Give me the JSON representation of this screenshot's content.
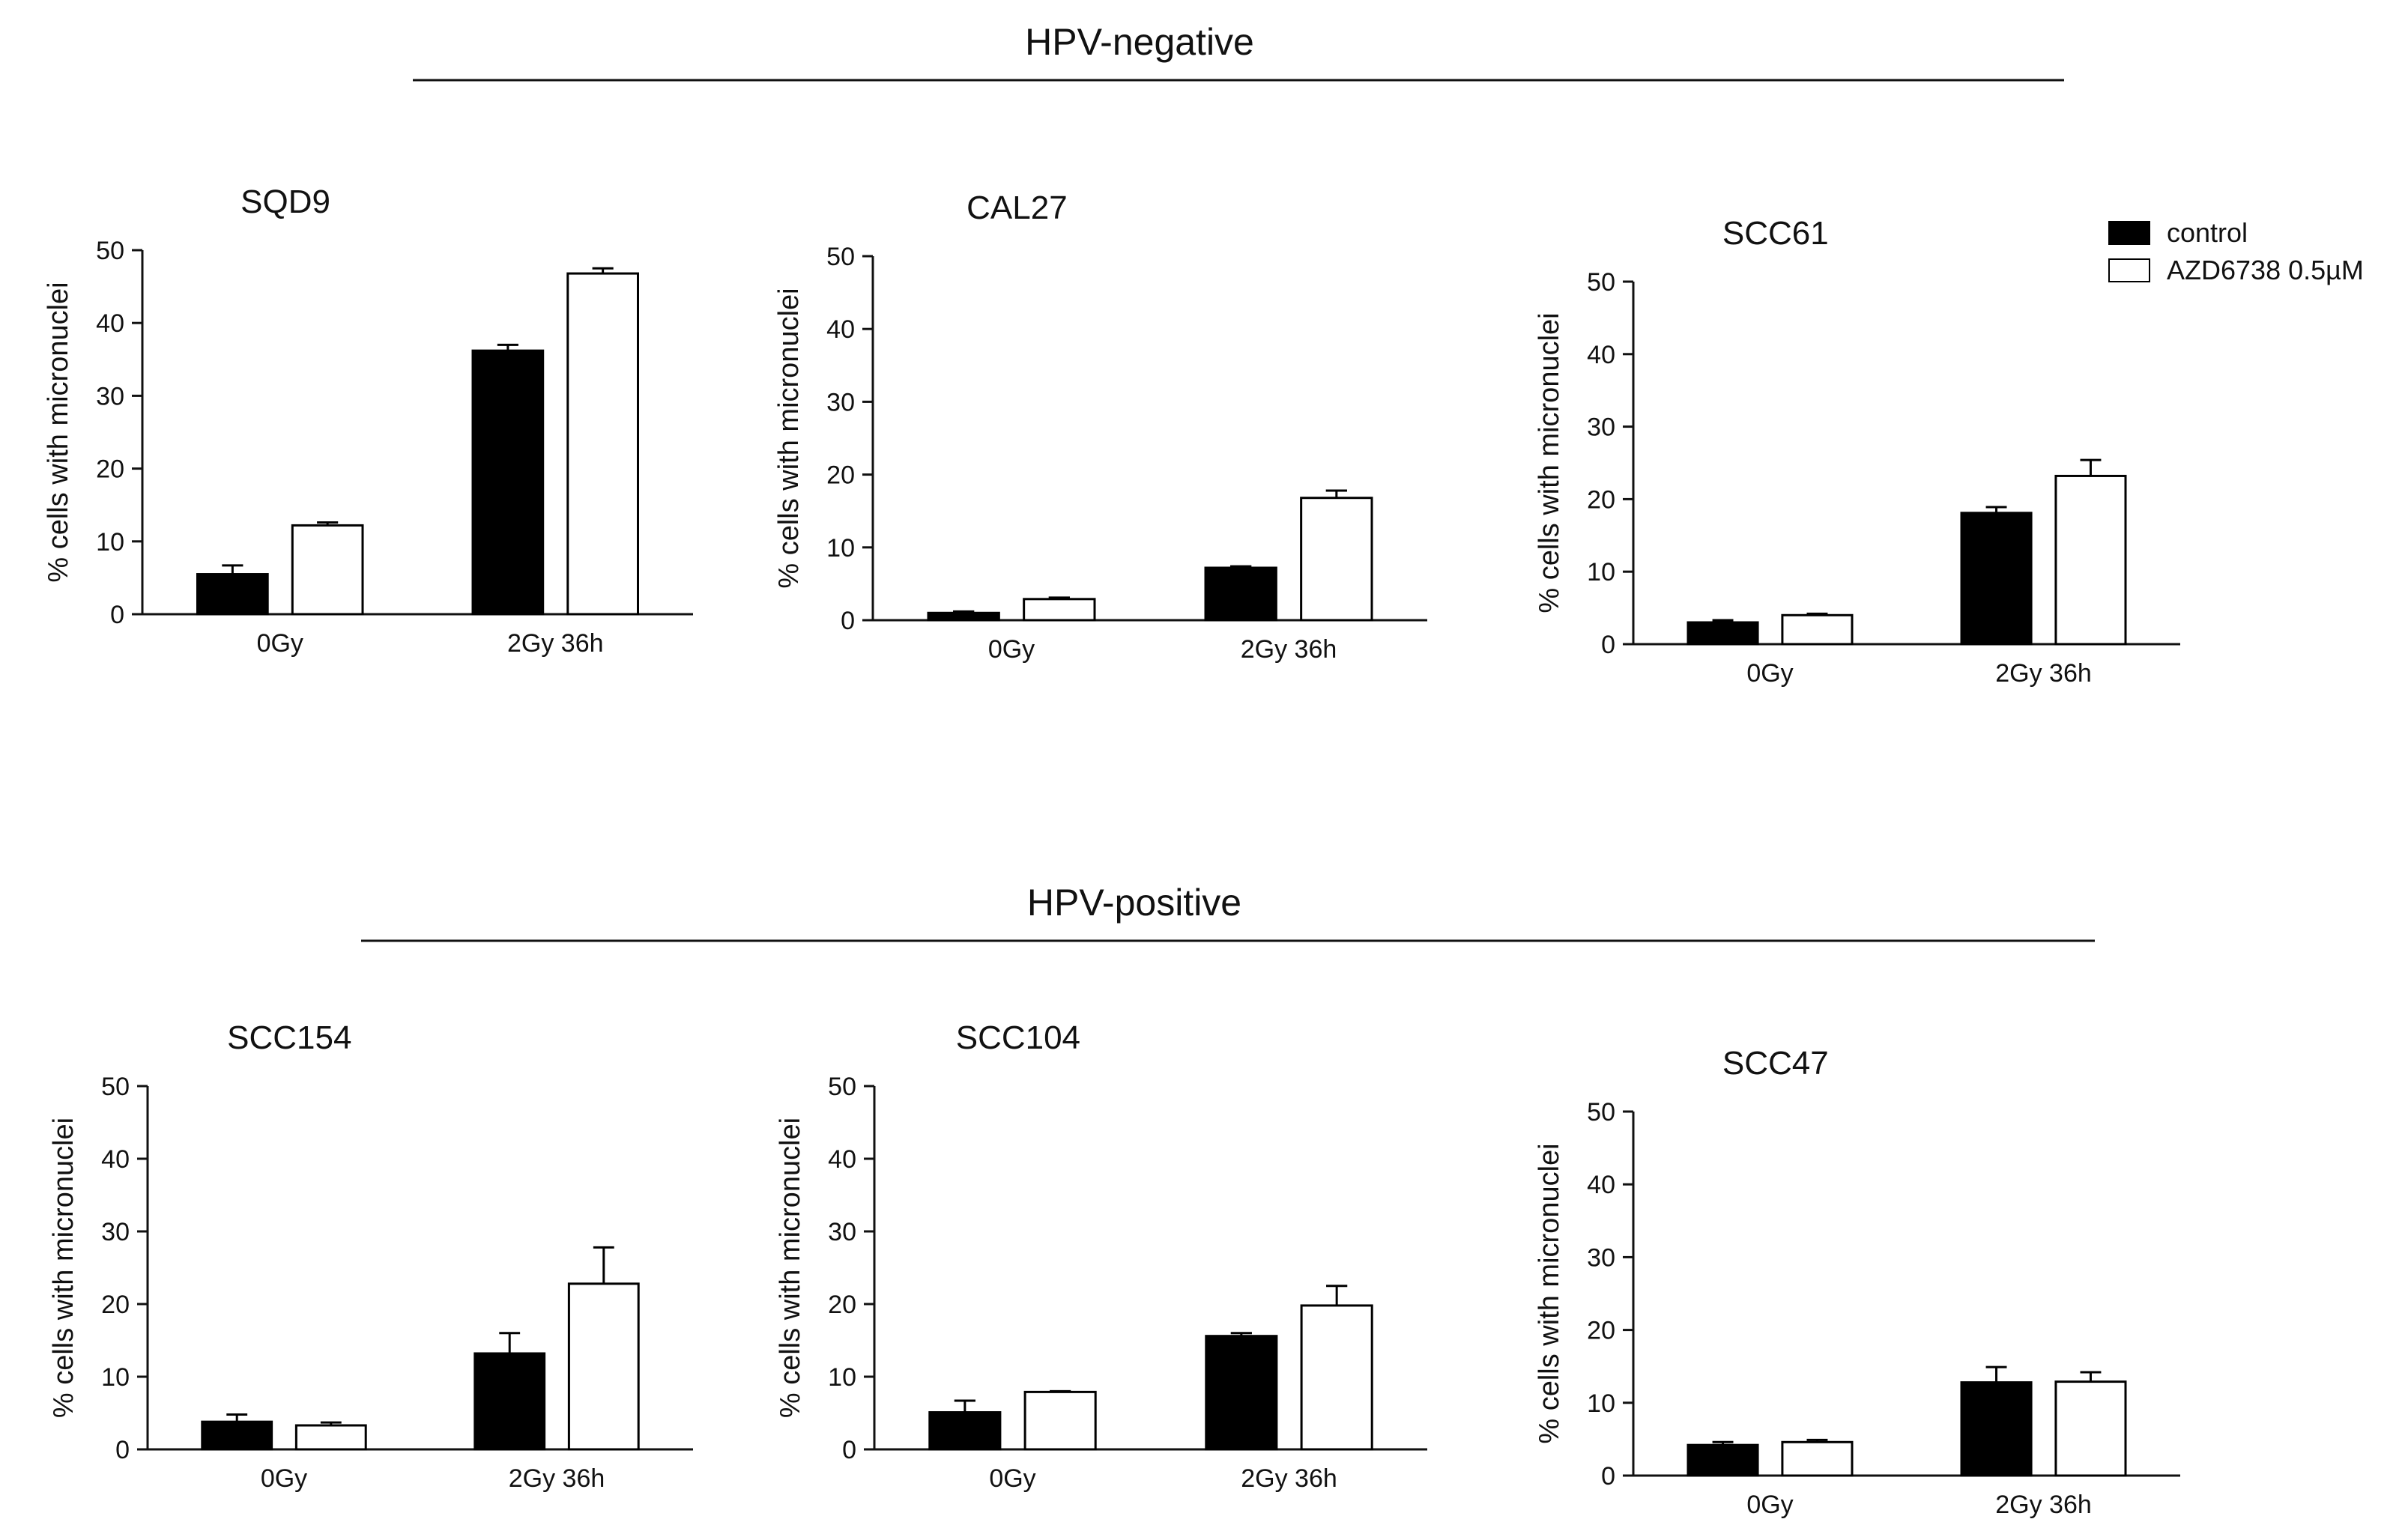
{
  "sections": [
    {
      "title": "HPV-negative"
    },
    {
      "title": "HPV-positive"
    }
  ],
  "legend": {
    "entries": [
      {
        "label": "control",
        "fill": "#000000"
      },
      {
        "label": "AZD6738 0.5µM",
        "fill": "#ffffff"
      }
    ]
  },
  "chart_data": [
    {
      "type": "bar",
      "section": "HPV-negative",
      "title": "SQD9",
      "xlabel": "",
      "ylabel": "% cells with micronuclei",
      "categories": [
        "0Gy",
        "2Gy 36h"
      ],
      "ylim": [
        0,
        50
      ],
      "yticks": [
        0,
        10,
        20,
        30,
        40,
        50
      ],
      "series": [
        {
          "name": "control",
          "values": [
            5.5,
            36.2
          ],
          "errors": [
            1.2,
            0.8
          ]
        },
        {
          "name": "AZD6738 0.5µM",
          "values": [
            12.2,
            46.8
          ],
          "errors": [
            0.4,
            0.7
          ]
        }
      ]
    },
    {
      "type": "bar",
      "section": "HPV-negative",
      "title": "CAL27",
      "xlabel": "",
      "ylabel": "% cells with micronuclei",
      "categories": [
        "0Gy",
        "2Gy 36h"
      ],
      "ylim": [
        0,
        50
      ],
      "yticks": [
        0,
        10,
        20,
        30,
        40,
        50
      ],
      "series": [
        {
          "name": "control",
          "values": [
            1.0,
            7.2
          ],
          "errors": [
            0.2,
            0.2
          ]
        },
        {
          "name": "AZD6738 0.5µM",
          "values": [
            2.9,
            16.8
          ],
          "errors": [
            0.2,
            1.0
          ]
        }
      ]
    },
    {
      "type": "bar",
      "section": "HPV-negative",
      "title": "SCC61",
      "xlabel": "",
      "ylabel": "% cells with micronuclei",
      "categories": [
        "0Gy",
        "2Gy 36h"
      ],
      "ylim": [
        0,
        50
      ],
      "yticks": [
        0,
        10,
        20,
        30,
        40,
        50
      ],
      "series": [
        {
          "name": "control",
          "values": [
            3.0,
            18.1
          ],
          "errors": [
            0.3,
            0.8
          ]
        },
        {
          "name": "AZD6738 0.5µM",
          "values": [
            4.0,
            23.2
          ],
          "errors": [
            0.2,
            2.2
          ]
        }
      ]
    },
    {
      "type": "bar",
      "section": "HPV-positive",
      "title": "SCC154",
      "xlabel": "",
      "ylabel": "% cells with micronuclei",
      "categories": [
        "0Gy",
        "2Gy 36h"
      ],
      "ylim": [
        0,
        50
      ],
      "yticks": [
        0,
        10,
        20,
        30,
        40,
        50
      ],
      "series": [
        {
          "name": "control",
          "values": [
            3.8,
            13.2
          ],
          "errors": [
            1.0,
            2.8
          ]
        },
        {
          "name": "AZD6738 0.5µM",
          "values": [
            3.3,
            22.8
          ],
          "errors": [
            0.4,
            5.0
          ]
        }
      ]
    },
    {
      "type": "bar",
      "section": "HPV-positive",
      "title": "SCC104",
      "xlabel": "",
      "ylabel": "% cells with micronuclei",
      "categories": [
        "0Gy",
        "2Gy 36h"
      ],
      "ylim": [
        0,
        50
      ],
      "yticks": [
        0,
        10,
        20,
        30,
        40,
        50
      ],
      "series": [
        {
          "name": "control",
          "values": [
            5.1,
            15.6
          ],
          "errors": [
            1.6,
            0.4
          ]
        },
        {
          "name": "AZD6738 0.5µM",
          "values": [
            7.9,
            19.8
          ],
          "errors": [
            0.1,
            2.7
          ]
        }
      ]
    },
    {
      "type": "bar",
      "section": "HPV-positive",
      "title": "SCC47",
      "xlabel": "",
      "ylabel": "% cells with micronuclei",
      "categories": [
        "0Gy",
        "2Gy 36h"
      ],
      "ylim": [
        0,
        50
      ],
      "yticks": [
        0,
        10,
        20,
        30,
        40,
        50
      ],
      "series": [
        {
          "name": "control",
          "values": [
            4.2,
            12.8
          ],
          "errors": [
            0.4,
            2.1
          ]
        },
        {
          "name": "AZD6738 0.5µM",
          "values": [
            4.6,
            12.9
          ],
          "errors": [
            0.3,
            1.3
          ]
        }
      ]
    }
  ]
}
